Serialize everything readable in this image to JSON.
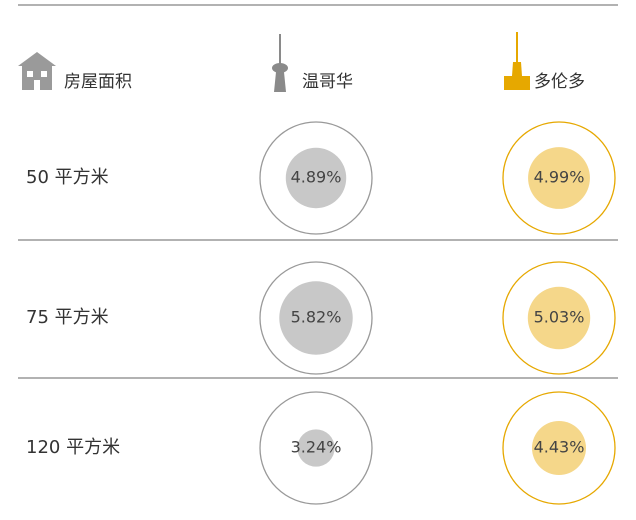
{
  "header": {
    "area": "房屋面积",
    "cities": [
      "温哥华",
      "多伦多"
    ]
  },
  "rows": [
    {
      "label": "50 平方米",
      "values": [
        4.89,
        4.99
      ],
      "value_labels": [
        "4.89%",
        "4.99%"
      ]
    },
    {
      "label": "75 平方米",
      "values": [
        5.82,
        5.03
      ],
      "value_labels": [
        "5.82%",
        "5.03%"
      ]
    },
    {
      "label": "120 平方米",
      "values": [
        3.24,
        4.43
      ],
      "value_labels": [
        "3.24%",
        "4.43%"
      ]
    }
  ]
}
